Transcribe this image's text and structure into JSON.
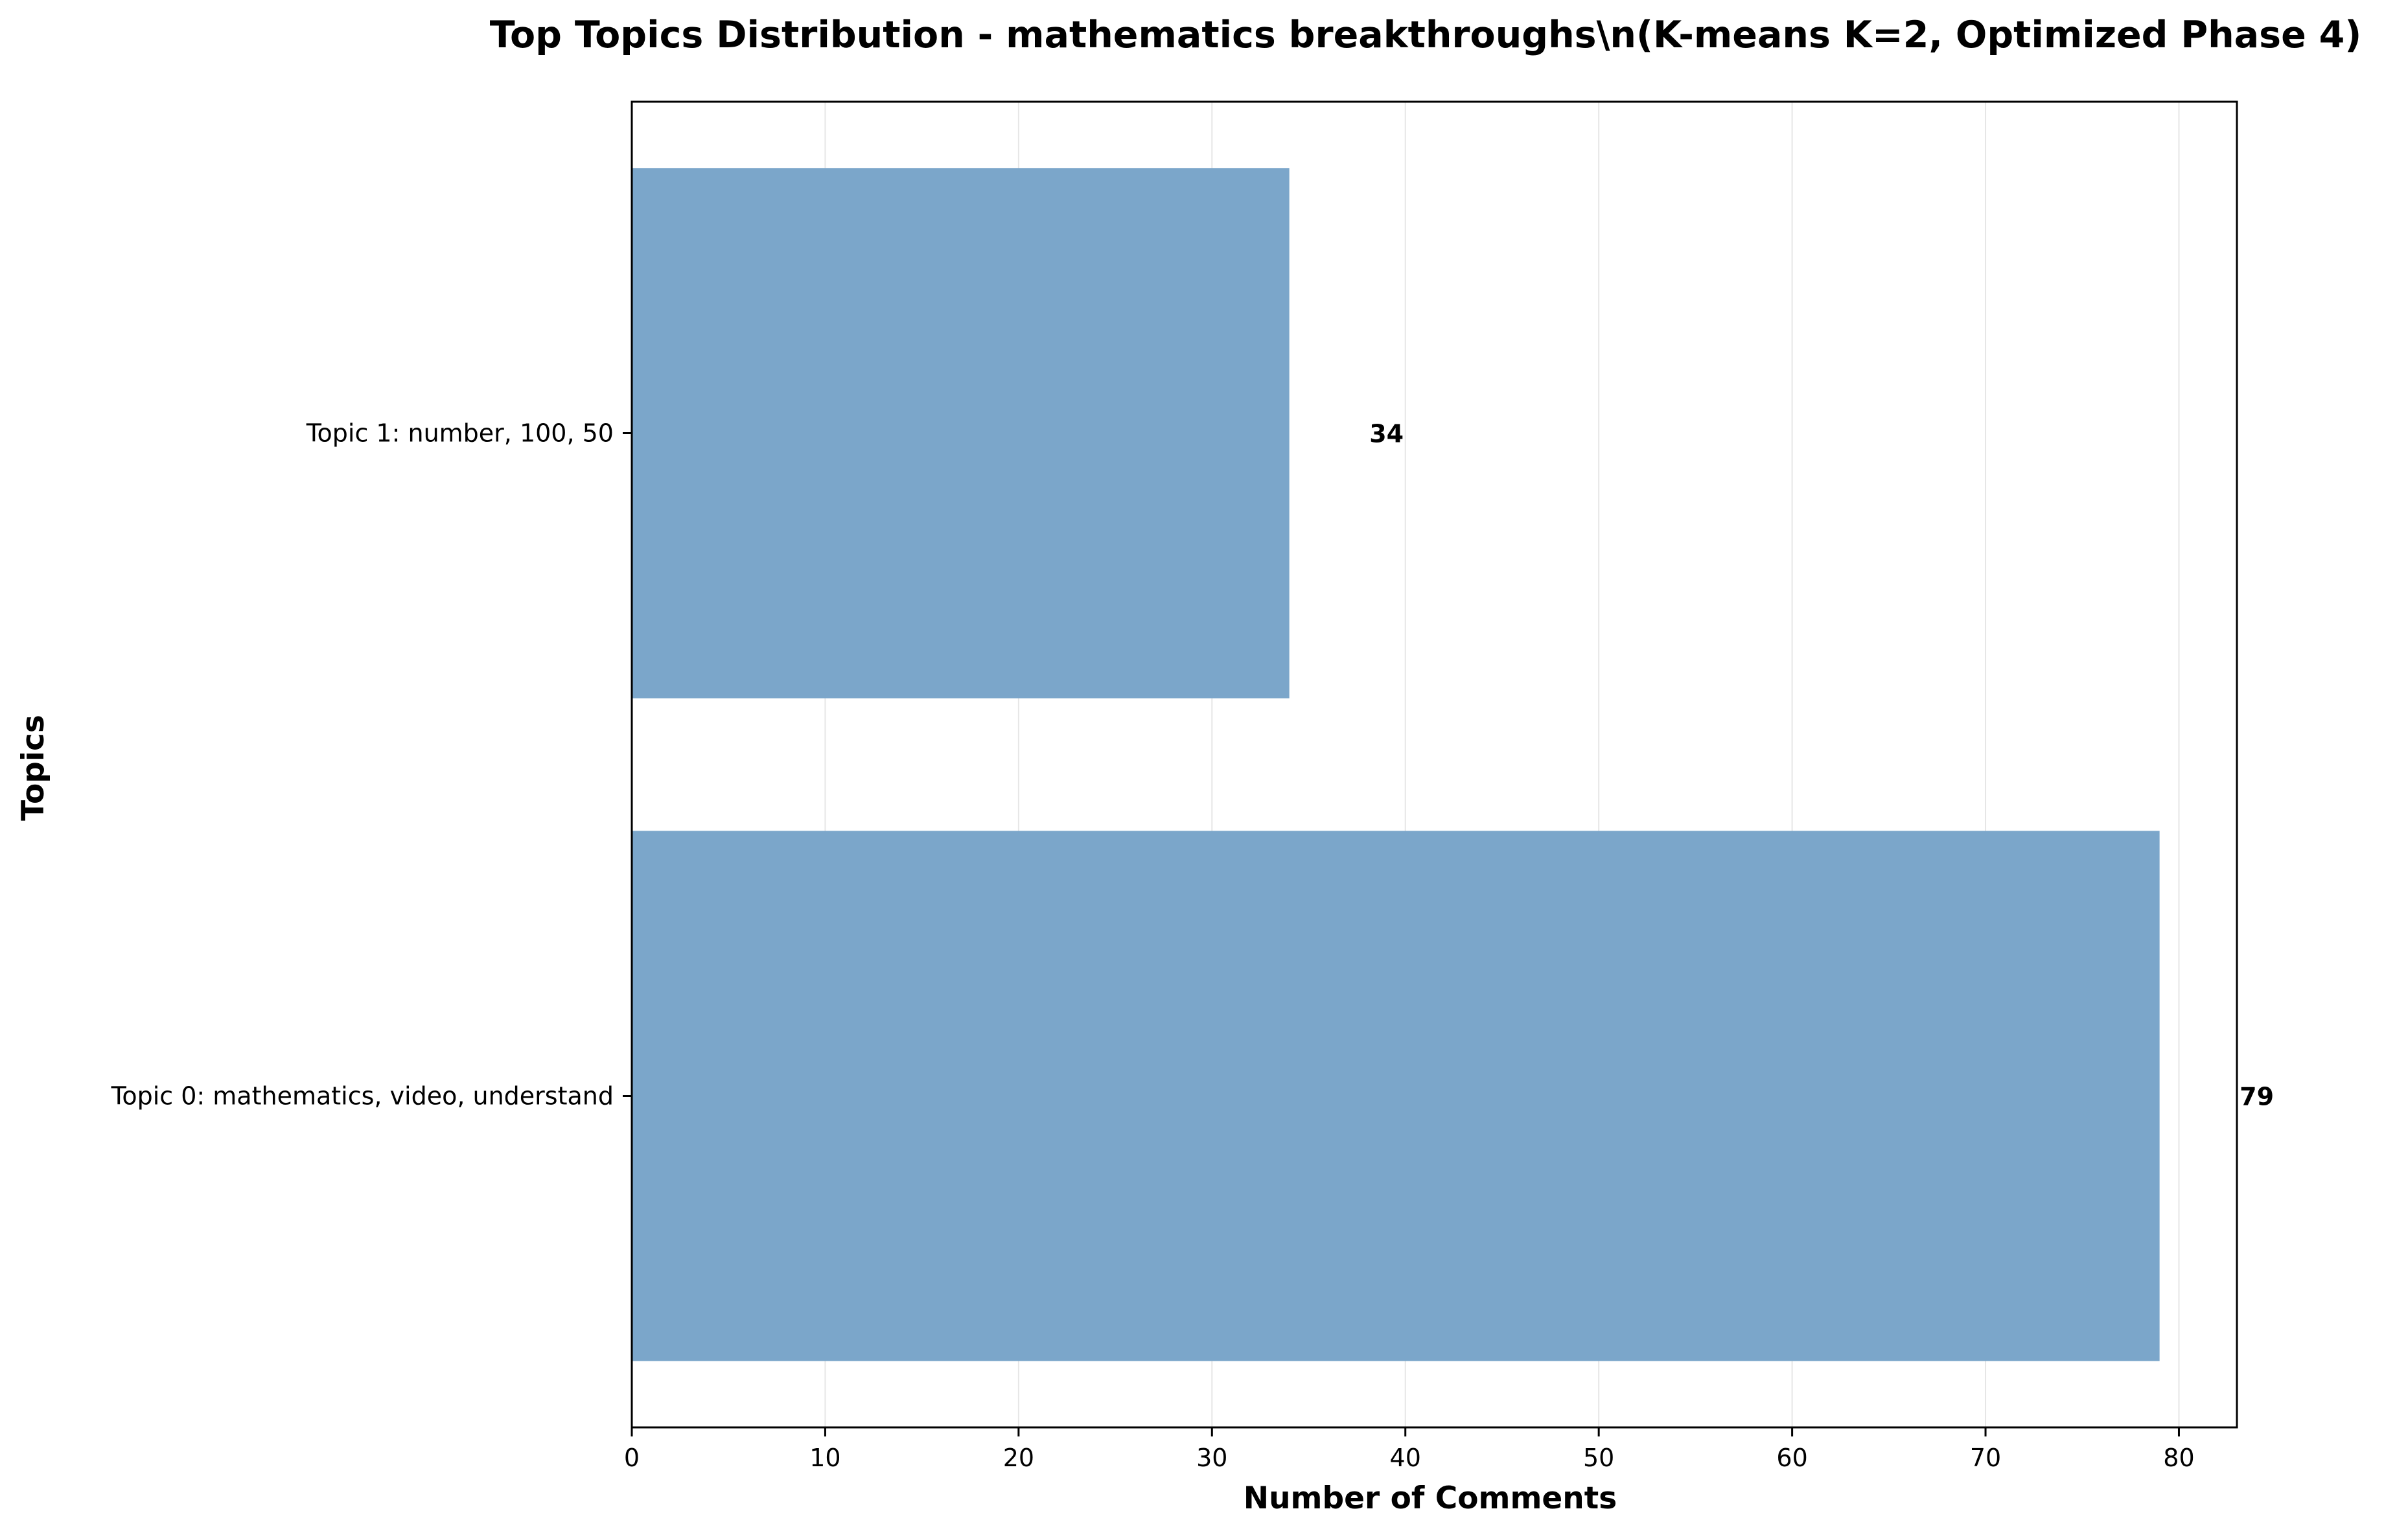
{
  "chart_data": {
    "type": "bar",
    "orientation": "horizontal",
    "title": "Top Topics Distribution - mathematics breakthroughs\\n(K-means K=2, Optimized Phase 4)",
    "xlabel": "Number of Comments",
    "ylabel": "Topics",
    "categories": [
      "Topic 0: mathematics, video, understand",
      "Topic 1: number, 100, 50"
    ],
    "values": [
      79,
      34
    ],
    "data_labels": [
      "79",
      "34"
    ],
    "xlim": [
      0,
      83
    ],
    "x_ticks": [
      0,
      10,
      20,
      30,
      40,
      50,
      60,
      70,
      80
    ],
    "x_tick_labels": [
      "0",
      "10",
      "20",
      "30",
      "40",
      "50",
      "60",
      "70",
      "80"
    ],
    "grid": "vertical",
    "legend": "none",
    "bar_color": "#7ba6ca",
    "grid_color": "#e6e6e6"
  }
}
